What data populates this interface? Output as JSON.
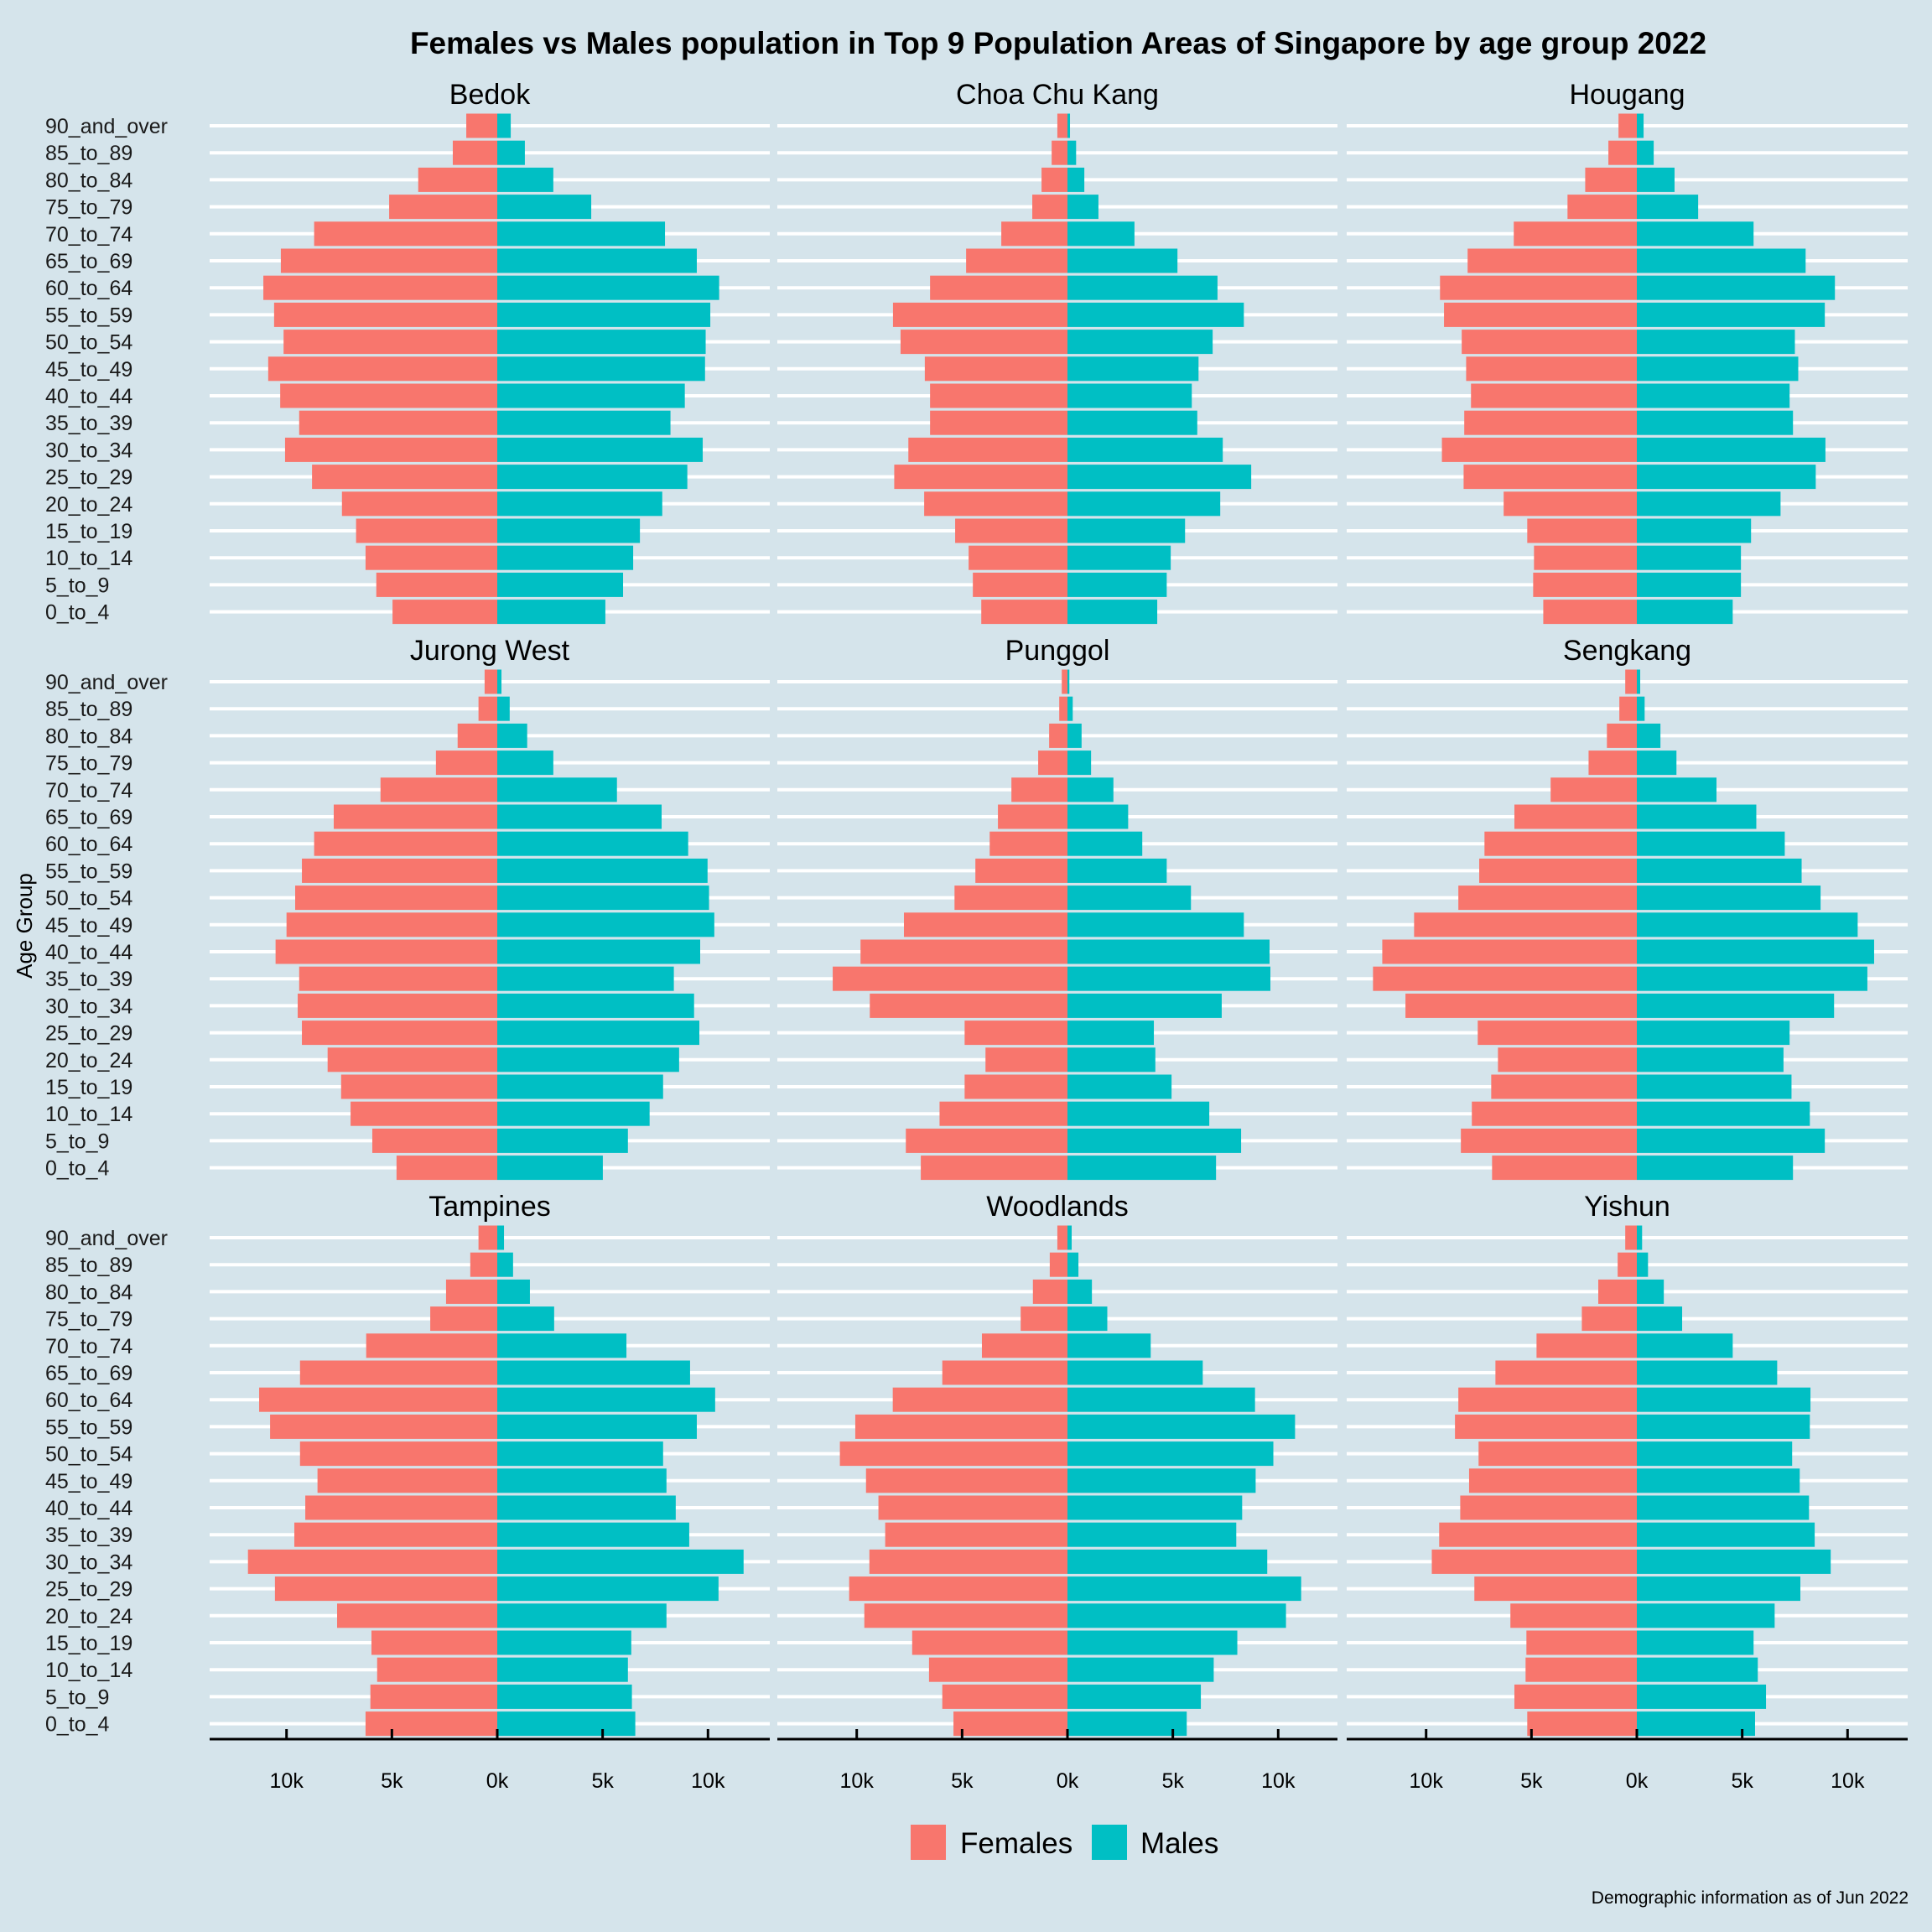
{
  "chart_data": {
    "type": "bar",
    "subtype": "population-pyramid-facets",
    "title": "Females vs Males population in Top 9 Population Areas of Singapore by age group 2022",
    "ylabel": "Age Group",
    "xlabel": "",
    "caption": "Demographic information as of Jun 2022",
    "units": "thousands of persons",
    "x_ticks": [
      {
        "value": -10,
        "label": "10k"
      },
      {
        "value": -5,
        "label": "5k"
      },
      {
        "value": 0,
        "label": "0k"
      },
      {
        "value": 5,
        "label": "5k"
      },
      {
        "value": 10,
        "label": "10k"
      }
    ],
    "xlim": [
      -13.5,
      13.2
    ],
    "grid": "horizontal major gridlines (white)",
    "legend": {
      "position": "bottom",
      "entries": [
        {
          "name": "Females",
          "color": "#F8766D"
        },
        {
          "name": "Males",
          "color": "#00BFC4"
        }
      ]
    },
    "categories": [
      "90_and_over",
      "85_to_89",
      "80_to_84",
      "75_to_79",
      "70_to_74",
      "65_to_69",
      "60_to_64",
      "55_to_59",
      "50_to_54",
      "45_to_49",
      "40_to_44",
      "35_to_39",
      "30_to_34",
      "25_to_29",
      "20_to_24",
      "15_to_19",
      "10_to_14",
      "5_to_9",
      "0_to_4"
    ],
    "panels": [
      {
        "name": "Bedok",
        "females": [
          1.47,
          2.11,
          3.75,
          5.13,
          8.69,
          10.27,
          11.1,
          10.59,
          10.14,
          10.87,
          10.3,
          9.4,
          10.07,
          8.79,
          7.37,
          6.7,
          6.25,
          5.74,
          4.97
        ],
        "males": [
          0.64,
          1.31,
          2.66,
          4.46,
          7.96,
          9.47,
          10.53,
          10.11,
          9.89,
          9.86,
          8.9,
          8.22,
          9.75,
          9.02,
          7.83,
          6.77,
          6.45,
          5.97,
          5.13
        ]
      },
      {
        "name": "Choa Chu Kang",
        "females": [
          0.48,
          0.75,
          1.23,
          1.67,
          3.14,
          4.81,
          6.52,
          8.28,
          7.92,
          6.77,
          6.52,
          6.52,
          7.55,
          8.22,
          6.8,
          5.33,
          4.69,
          4.49,
          4.09
        ],
        "males": [
          0.12,
          0.41,
          0.8,
          1.47,
          3.18,
          5.22,
          7.12,
          8.37,
          6.89,
          6.22,
          5.9,
          6.16,
          7.37,
          8.72,
          7.25,
          5.58,
          4.9,
          4.71,
          4.26
        ]
      },
      {
        "name": "Hougang",
        "females": [
          0.87,
          1.35,
          2.45,
          3.29,
          5.84,
          8.03,
          9.34,
          9.15,
          8.31,
          8.1,
          7.87,
          8.19,
          9.25,
          8.22,
          6.32,
          5.2,
          4.88,
          4.92,
          4.44
        ],
        "males": [
          0.32,
          0.8,
          1.79,
          2.91,
          5.54,
          8.01,
          9.4,
          8.92,
          7.5,
          7.66,
          7.25,
          7.41,
          8.95,
          8.49,
          6.82,
          5.42,
          4.94,
          4.94,
          4.55
        ]
      },
      {
        "name": "Jurong West",
        "females": [
          0.6,
          0.89,
          1.88,
          2.91,
          5.54,
          7.76,
          8.69,
          9.27,
          9.59,
          10.0,
          10.52,
          9.4,
          9.47,
          9.27,
          8.05,
          7.41,
          6.96,
          5.93,
          4.78
        ],
        "males": [
          0.2,
          0.59,
          1.42,
          2.66,
          5.68,
          7.8,
          9.06,
          9.98,
          10.05,
          10.3,
          9.63,
          8.38,
          9.34,
          9.59,
          8.63,
          7.87,
          7.23,
          6.2,
          5.01
        ]
      },
      {
        "name": "Punggol",
        "females": [
          0.27,
          0.39,
          0.87,
          1.39,
          2.66,
          3.3,
          3.69,
          4.37,
          5.36,
          7.76,
          9.82,
          11.14,
          9.38,
          4.88,
          3.89,
          4.88,
          6.07,
          7.67,
          6.96
        ],
        "males": [
          0.09,
          0.25,
          0.67,
          1.12,
          2.18,
          2.88,
          3.55,
          4.71,
          5.86,
          8.37,
          9.59,
          9.63,
          7.32,
          4.1,
          4.17,
          4.94,
          6.73,
          8.24,
          7.05
        ]
      },
      {
        "name": "Sengkang",
        "females": [
          0.55,
          0.83,
          1.42,
          2.29,
          4.09,
          5.81,
          7.23,
          7.48,
          8.47,
          10.57,
          12.08,
          12.52,
          10.98,
          7.55,
          6.59,
          6.91,
          7.83,
          8.35,
          6.87
        ],
        "males": [
          0.16,
          0.37,
          1.12,
          1.88,
          3.78,
          5.67,
          7.02,
          7.82,
          8.72,
          10.48,
          11.26,
          10.94,
          9.36,
          7.25,
          6.96,
          7.34,
          8.21,
          8.92,
          7.41
        ]
      },
      {
        "name": "Tampines",
        "females": [
          0.89,
          1.28,
          2.43,
          3.18,
          6.22,
          9.36,
          11.3,
          10.78,
          9.36,
          8.53,
          9.11,
          9.63,
          11.83,
          10.55,
          7.6,
          5.97,
          5.7,
          6.02,
          6.25
        ],
        "males": [
          0.32,
          0.75,
          1.55,
          2.7,
          6.13,
          9.15,
          10.34,
          9.47,
          7.87,
          8.03,
          8.47,
          9.11,
          11.69,
          10.5,
          8.03,
          6.36,
          6.2,
          6.39,
          6.55
        ]
      },
      {
        "name": "Woodlands",
        "females": [
          0.48,
          0.84,
          1.64,
          2.22,
          4.06,
          5.94,
          8.29,
          10.07,
          10.8,
          9.56,
          8.97,
          8.65,
          9.4,
          10.36,
          9.64,
          7.37,
          6.57,
          5.94,
          5.41
        ],
        "males": [
          0.2,
          0.52,
          1.16,
          1.89,
          3.95,
          6.42,
          8.9,
          10.8,
          9.77,
          8.93,
          8.29,
          8.01,
          9.48,
          11.09,
          10.37,
          8.06,
          6.94,
          6.33,
          5.66
        ]
      },
      {
        "name": "Yishun",
        "females": [
          0.55,
          0.91,
          1.83,
          2.61,
          4.76,
          6.71,
          8.47,
          8.63,
          7.51,
          7.96,
          8.38,
          9.38,
          9.73,
          7.71,
          6.0,
          5.24,
          5.28,
          5.81,
          5.2
        ],
        "males": [
          0.25,
          0.53,
          1.28,
          2.15,
          4.55,
          6.66,
          8.24,
          8.21,
          7.37,
          7.73,
          8.17,
          8.44,
          9.2,
          7.76,
          6.54,
          5.54,
          5.74,
          6.13,
          5.61
        ]
      }
    ]
  },
  "colors": {
    "background": "#d5e4eb",
    "females": "#F8766D",
    "males": "#00BFC4",
    "gridline": "#ffffff",
    "axis": "#000000"
  }
}
